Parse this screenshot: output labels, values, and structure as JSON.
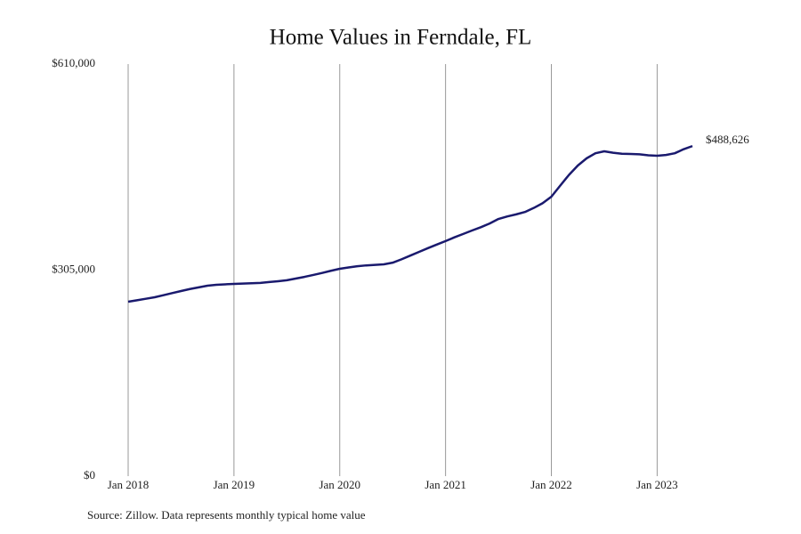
{
  "chart_data": {
    "type": "line",
    "title": "Home Values in Ferndale, FL",
    "source": "Source: Zillow. Data represents monthly typical home value",
    "color": "#1a1a6e",
    "grid": true,
    "x": [
      "2018-01",
      "2018-02",
      "2018-03",
      "2018-04",
      "2018-05",
      "2018-06",
      "2018-07",
      "2018-08",
      "2018-09",
      "2018-10",
      "2018-11",
      "2018-12",
      "2019-01",
      "2019-02",
      "2019-03",
      "2019-04",
      "2019-05",
      "2019-06",
      "2019-07",
      "2019-08",
      "2019-09",
      "2019-10",
      "2019-11",
      "2019-12",
      "2020-01",
      "2020-02",
      "2020-03",
      "2020-04",
      "2020-05",
      "2020-06",
      "2020-07",
      "2020-08",
      "2020-09",
      "2020-10",
      "2020-11",
      "2020-12",
      "2021-01",
      "2021-02",
      "2021-03",
      "2021-04",
      "2021-05",
      "2021-06",
      "2021-07",
      "2021-08",
      "2021-09",
      "2021-10",
      "2021-11",
      "2021-12",
      "2022-01",
      "2022-02",
      "2022-03",
      "2022-04",
      "2022-05",
      "2022-06",
      "2022-07",
      "2022-08",
      "2022-09",
      "2022-10",
      "2022-11",
      "2022-12",
      "2023-01",
      "2023-02",
      "2023-03",
      "2023-04",
      "2023-05"
    ],
    "values": [
      258200,
      260400,
      262600,
      264800,
      267900,
      271000,
      274000,
      277000,
      279500,
      282000,
      283300,
      284000,
      284600,
      285100,
      285500,
      286000,
      287300,
      288600,
      290000,
      292500,
      295000,
      297800,
      300800,
      304000,
      307000,
      309000,
      310800,
      312000,
      312800,
      313600,
      316000,
      321000,
      326500,
      332000,
      337500,
      342800,
      348000,
      353500,
      358500,
      363600,
      368500,
      374000,
      380700,
      384500,
      387500,
      391000,
      397000,
      404000,
      413700,
      430000,
      446000,
      459800,
      470500,
      478000,
      480900,
      478800,
      477300,
      477000,
      476500,
      475000,
      474300,
      475500,
      478000,
      484000,
      488626
    ],
    "value_labels": [
      null,
      null,
      null,
      null,
      null,
      null,
      null,
      null,
      null,
      null,
      null,
      null,
      null,
      null,
      null,
      null,
      null,
      null,
      null,
      null,
      null,
      null,
      null,
      null,
      null,
      null,
      null,
      null,
      null,
      null,
      null,
      null,
      null,
      null,
      null,
      null,
      null,
      null,
      null,
      null,
      null,
      null,
      null,
      null,
      null,
      null,
      null,
      null,
      null,
      null,
      null,
      null,
      null,
      null,
      null,
      null,
      null,
      null,
      null,
      null,
      null,
      null,
      null,
      null,
      "$488,626"
    ],
    "xlim": [
      "2018-01",
      "2023-05"
    ],
    "xticks": [
      {
        "value": "2018-01",
        "label": "Jan 2018"
      },
      {
        "value": "2019-01",
        "label": "Jan 2019"
      },
      {
        "value": "2020-01",
        "label": "Jan 2020"
      },
      {
        "value": "2021-01",
        "label": "Jan 2021"
      },
      {
        "value": "2022-01",
        "label": "Jan 2022"
      },
      {
        "value": "2023-01",
        "label": "Jan 2023"
      }
    ],
    "ylim": [
      0,
      610000
    ],
    "yticks": [
      {
        "value": 0,
        "label": "$0"
      },
      {
        "value": 305000,
        "label": "$305,000"
      },
      {
        "value": 610000,
        "label": "$610,000"
      }
    ]
  }
}
